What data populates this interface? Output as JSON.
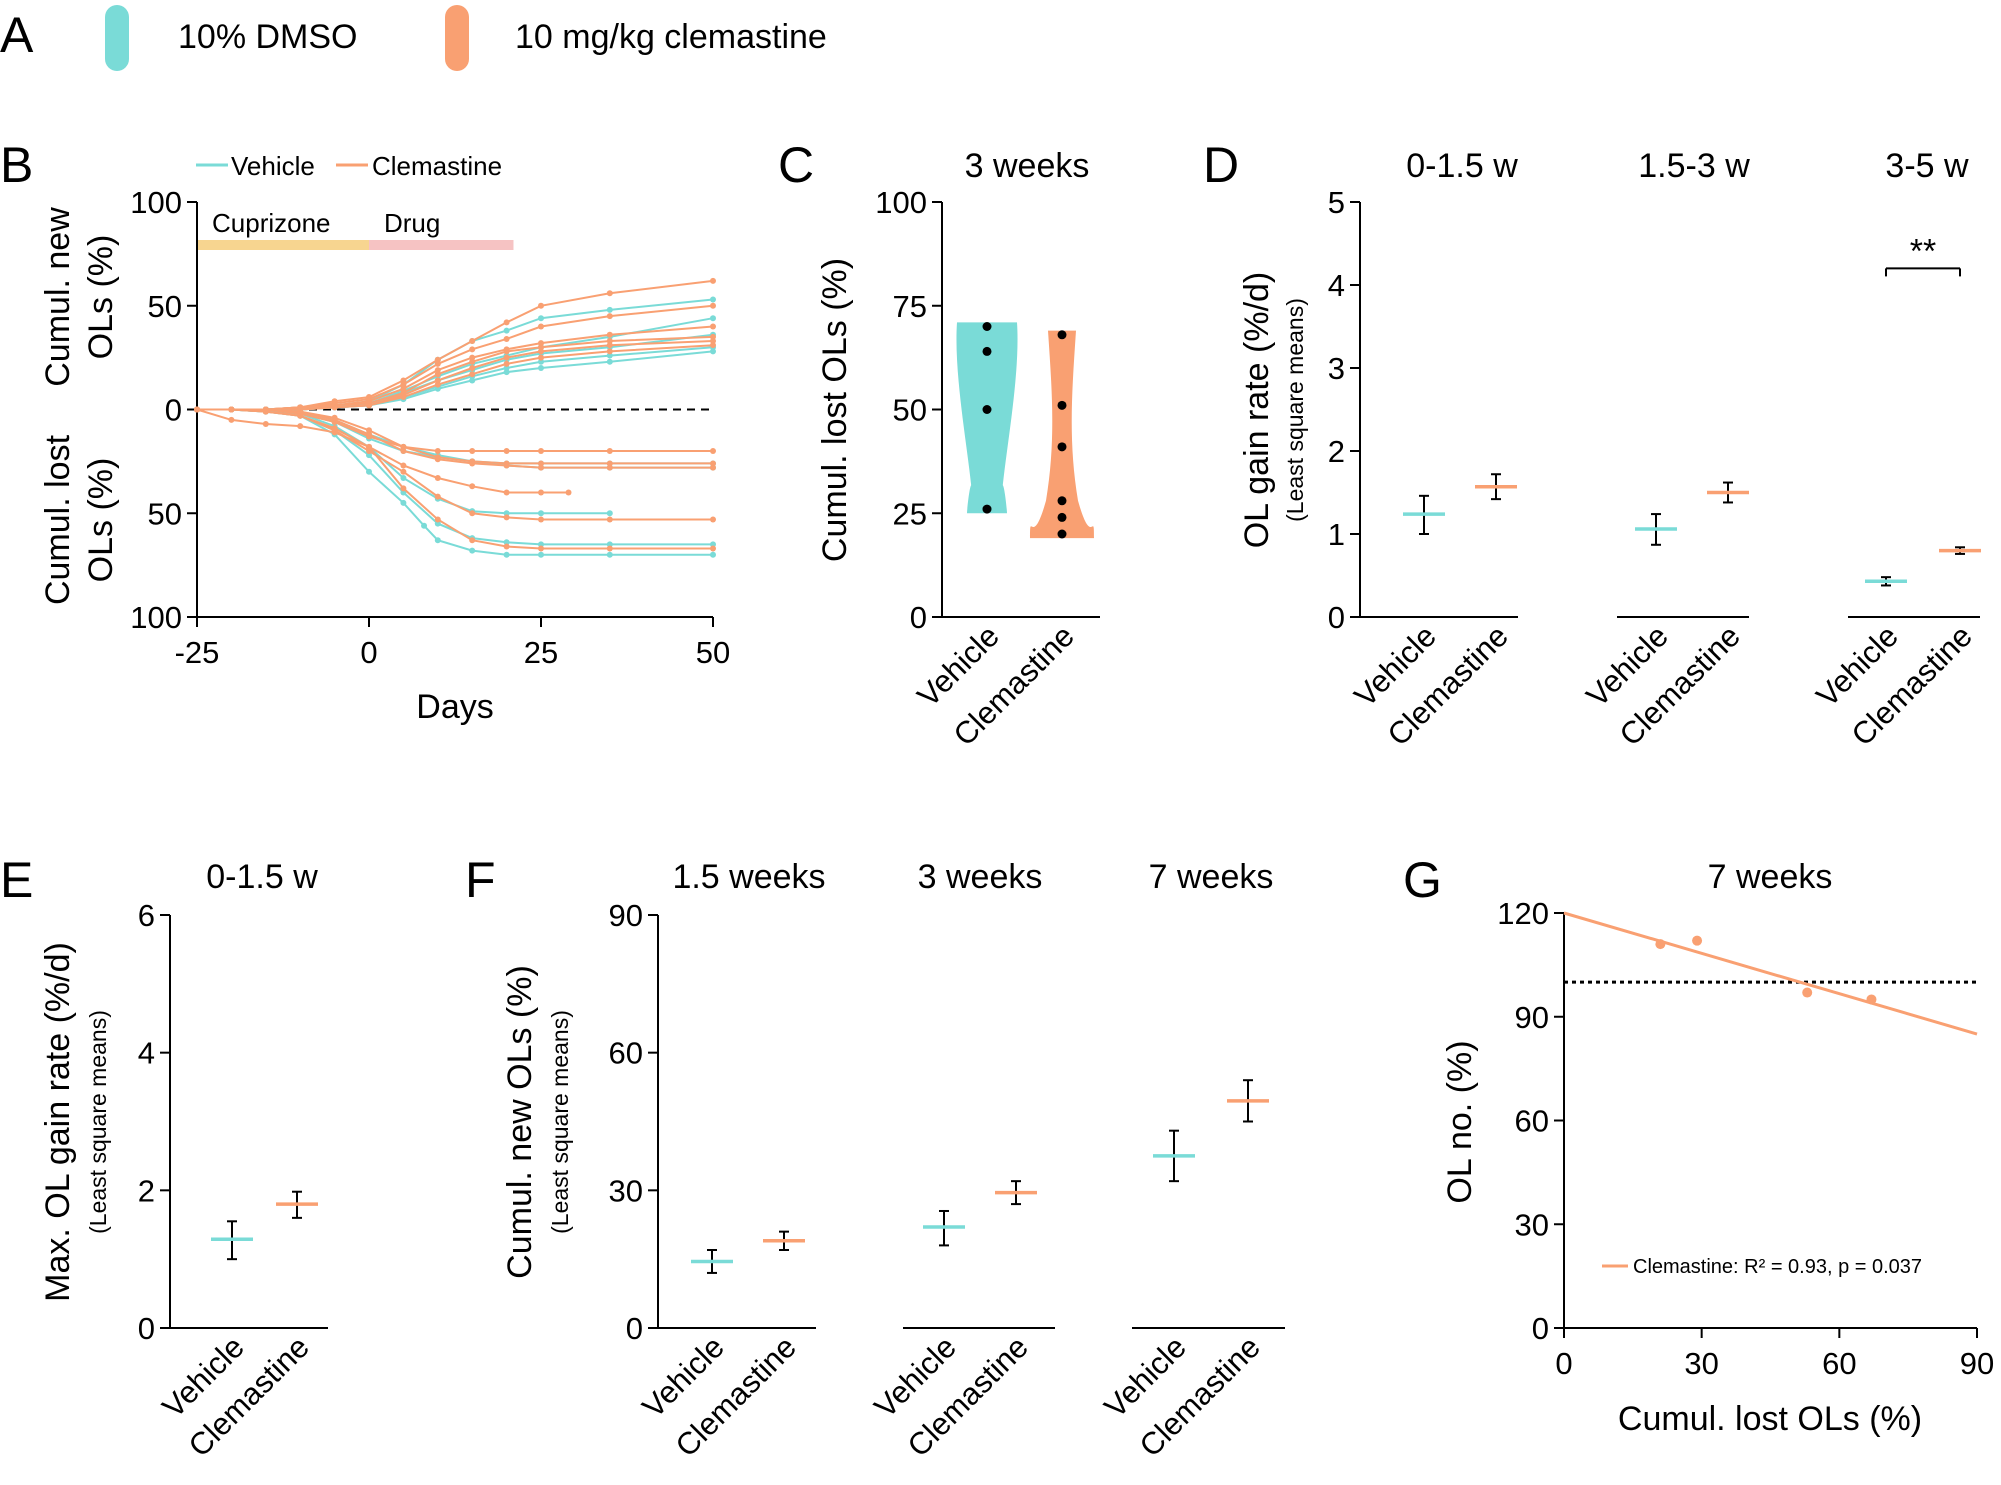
{
  "colors": {
    "vehicle": "#7ADBD7",
    "clemastine": "#F9A072",
    "cuprizone": "#F7D590",
    "drug": "#F6C3C3",
    "black": "#000000"
  },
  "chart_data": [
    {
      "panel": "A",
      "type": "legend",
      "entries": [
        {
          "label": "10% DMSO",
          "color": "#7ADBD7"
        },
        {
          "label": "10 mg/kg clemastine",
          "color": "#F9A072"
        }
      ]
    },
    {
      "panel": "B",
      "type": "line",
      "xlabel": "Days",
      "ylabel_top": [
        "Cumul. new",
        "OLs (%)"
      ],
      "ylabel_bottom": [
        "Cumul. lost",
        "OLs (%)"
      ],
      "xlim": [
        -25,
        50
      ],
      "ylim": [
        -100,
        100
      ],
      "xticks": [
        "-25",
        "0",
        "25",
        "50"
      ],
      "yticks": [
        {
          "v": 100,
          "label": "100"
        },
        {
          "v": 50,
          "label": "50"
        },
        {
          "v": 0,
          "label": "0"
        },
        {
          "v": -50,
          "label": "50"
        },
        {
          "v": -100,
          "label": "100"
        }
      ],
      "phases": [
        {
          "label": "Cuprizone",
          "start": -25,
          "end": 0
        },
        {
          "label": "Drug",
          "start": 0,
          "end": 21
        }
      ],
      "legend": [
        "Vehicle",
        "Clemastine"
      ],
      "series": [
        {
          "group": "vehicle",
          "x": [
            -25,
            -20,
            -15,
            -10,
            -5,
            0,
            5,
            10,
            15,
            20,
            25,
            35,
            50
          ],
          "y": [
            0,
            0,
            0,
            1,
            2,
            4,
            12,
            24,
            33,
            38,
            44,
            48,
            53
          ]
        },
        {
          "group": "vehicle",
          "x": [
            -25,
            -20,
            -15,
            -10,
            -5,
            0,
            5,
            10,
            15,
            20,
            25,
            35,
            50
          ],
          "y": [
            0,
            0,
            0,
            0,
            1,
            3,
            9,
            16,
            22,
            26,
            30,
            35,
            44
          ]
        },
        {
          "group": "vehicle",
          "x": [
            -25,
            -20,
            -15,
            -10,
            -5,
            0,
            5,
            10,
            15,
            20,
            25,
            35,
            50
          ],
          "y": [
            0,
            0,
            0,
            0,
            1,
            2,
            8,
            14,
            19,
            24,
            27,
            30,
            36
          ]
        },
        {
          "group": "vehicle",
          "x": [
            -25,
            -20,
            -15,
            -10,
            -5,
            0,
            5,
            10,
            15,
            20,
            25,
            35,
            50
          ],
          "y": [
            0,
            0,
            0,
            0,
            1,
            2,
            6,
            11,
            16,
            20,
            23,
            26,
            30
          ]
        },
        {
          "group": "vehicle",
          "x": [
            -25,
            -20,
            -15,
            -10,
            -5,
            0,
            5,
            10,
            15,
            20,
            25,
            35,
            50
          ],
          "y": [
            0,
            0,
            0,
            0,
            1,
            2,
            5,
            10,
            14,
            18,
            20,
            23,
            28
          ]
        },
        {
          "group": "clemastine",
          "x": [
            -25,
            -20,
            -15,
            -10,
            -5,
            0,
            5,
            10,
            15,
            20,
            25,
            35,
            50
          ],
          "y": [
            0,
            0,
            0,
            1,
            4,
            6,
            14,
            24,
            33,
            42,
            50,
            56,
            62
          ]
        },
        {
          "group": "clemastine",
          "x": [
            -25,
            -20,
            -15,
            -10,
            -5,
            0,
            5,
            10,
            15,
            20,
            25,
            35,
            50
          ],
          "y": [
            0,
            0,
            0,
            1,
            3,
            5,
            12,
            22,
            29,
            34,
            40,
            45,
            50
          ]
        },
        {
          "group": "clemastine",
          "x": [
            -25,
            -20,
            -15,
            -10,
            -5,
            0,
            5,
            10,
            15,
            20,
            25,
            35,
            50
          ],
          "y": [
            0,
            0,
            0,
            1,
            2,
            4,
            10,
            19,
            25,
            29,
            32,
            36,
            40
          ]
        },
        {
          "group": "clemastine",
          "x": [
            -25,
            -20,
            -15,
            -10,
            -5,
            0,
            5,
            10,
            15,
            20,
            25,
            35,
            50
          ],
          "y": [
            0,
            0,
            0,
            1,
            2,
            3,
            8,
            17,
            23,
            28,
            30,
            33,
            35
          ]
        },
        {
          "group": "clemastine",
          "x": [
            -25,
            -20,
            -15,
            -10,
            -5,
            0,
            5,
            10,
            15,
            20,
            25,
            35,
            50
          ],
          "y": [
            0,
            0,
            0,
            0,
            1,
            2,
            7,
            14,
            20,
            25,
            28,
            31,
            33
          ]
        },
        {
          "group": "clemastine",
          "x": [
            -25,
            -20,
            -15,
            -10,
            -5,
            0,
            5,
            10,
            15,
            20,
            25,
            35,
            50
          ],
          "y": [
            0,
            0,
            0,
            0,
            1,
            2,
            6,
            12,
            17,
            22,
            25,
            28,
            31
          ]
        },
        {
          "group": "vehicle",
          "x": [
            -25,
            -20,
            -15,
            -10,
            -5,
            0,
            5,
            8,
            10,
            15,
            20,
            25,
            35,
            50
          ],
          "y": [
            0,
            0,
            -1,
            -3,
            -12,
            -30,
            -45,
            -56,
            -63,
            -68,
            -70,
            -70,
            -70,
            -70
          ]
        },
        {
          "group": "vehicle",
          "x": [
            -25,
            -20,
            -15,
            -10,
            -5,
            0,
            5,
            10,
            15,
            20,
            25,
            35,
            50
          ],
          "y": [
            0,
            0,
            -1,
            -3,
            -10,
            -22,
            -40,
            -55,
            -62,
            -64,
            -65,
            -65,
            -65
          ]
        },
        {
          "group": "vehicle",
          "x": [
            -25,
            -20,
            -15,
            -10,
            -5,
            0,
            5,
            10,
            15,
            20,
            25,
            35
          ],
          "y": [
            0,
            0,
            -1,
            -2,
            -8,
            -18,
            -33,
            -43,
            -49,
            -50,
            -50,
            -50
          ]
        },
        {
          "group": "vehicle",
          "x": [
            -25,
            -20,
            -15,
            -10,
            -5,
            0,
            5,
            10,
            15,
            20,
            25,
            35,
            50
          ],
          "y": [
            0,
            0,
            0,
            -2,
            -6,
            -14,
            -20,
            -23,
            -25,
            -26,
            -26,
            -26,
            -26
          ]
        },
        {
          "group": "vehicle",
          "x": [
            -25,
            -20,
            -15,
            -10,
            -5,
            0,
            5,
            10,
            15,
            20,
            25,
            35,
            50
          ],
          "y": [
            0,
            0,
            0,
            -1,
            -5,
            -12,
            -18,
            -22,
            -25,
            -27,
            -28,
            -28,
            -28
          ]
        },
        {
          "group": "clemastine",
          "x": [
            -25,
            -20,
            -15,
            -10,
            -5,
            0,
            5,
            10,
            15,
            20,
            25,
            35,
            50
          ],
          "y": [
            0,
            -5,
            -7,
            -8,
            -11,
            -18,
            -38,
            -53,
            -63,
            -66,
            -67,
            -67,
            -67
          ]
        },
        {
          "group": "clemastine",
          "x": [
            -25,
            -20,
            -15,
            -10,
            -5,
            0,
            5,
            10,
            15,
            20,
            25,
            35,
            50
          ],
          "y": [
            0,
            0,
            -1,
            -3,
            -10,
            -20,
            -30,
            -42,
            -50,
            -52,
            -53,
            -53,
            -53
          ]
        },
        {
          "group": "clemastine",
          "x": [
            -25,
            -20,
            -15,
            -10,
            -5,
            0,
            5,
            10,
            15,
            20,
            25,
            29
          ],
          "y": [
            0,
            0,
            -1,
            -3,
            -9,
            -18,
            -27,
            -33,
            -37,
            -40,
            -40,
            -40
          ]
        },
        {
          "group": "clemastine",
          "x": [
            -25,
            -20,
            -15,
            -10,
            -5,
            0,
            5,
            10,
            15,
            20,
            25,
            35,
            50
          ],
          "y": [
            0,
            0,
            0,
            -2,
            -6,
            -13,
            -18,
            -20,
            -20,
            -20,
            -20,
            -20,
            -20
          ]
        },
        {
          "group": "clemastine",
          "x": [
            -25,
            -20,
            -15,
            -10,
            -5,
            0,
            5,
            10,
            15,
            20,
            25,
            35,
            50
          ],
          "y": [
            0,
            0,
            0,
            -1,
            -5,
            -12,
            -20,
            -24,
            -26,
            -27,
            -28,
            -28,
            -28
          ]
        },
        {
          "group": "clemastine",
          "x": [
            -25,
            -20,
            -15,
            -10,
            -5,
            0,
            5,
            10,
            15,
            20,
            25,
            35,
            50
          ],
          "y": [
            0,
            0,
            0,
            -1,
            -4,
            -10,
            -18,
            -23,
            -25,
            -26,
            -26,
            -26,
            -26
          ]
        }
      ]
    },
    {
      "panel": "C",
      "type": "violin",
      "title": "3 weeks",
      "ylabel": "Cumul. lost OLs (%)",
      "ylim": [
        0,
        100
      ],
      "yticks": [
        "0",
        "25",
        "50",
        "75",
        "100"
      ],
      "categories": [
        "Vehicle",
        "Clemastine"
      ],
      "points": [
        [
          26,
          50,
          64,
          70
        ],
        [
          20,
          24,
          28,
          41,
          51,
          68
        ]
      ],
      "ranges": [
        [
          25,
          71
        ],
        [
          19,
          69
        ]
      ]
    },
    {
      "panel": "D",
      "type": "mean_ci",
      "ylabel": "OL gain rate (%/d)",
      "ylabel_sub": "(Least square means)",
      "ylim": [
        0,
        5
      ],
      "yticks": [
        "0",
        "1",
        "2",
        "3",
        "4",
        "5"
      ],
      "groups": [
        {
          "title": "0-1.5 w",
          "categories": [
            "Vehicle",
            "Clemastine"
          ],
          "means": [
            1.24,
            1.57
          ],
          "lower": [
            1.0,
            1.42
          ],
          "upper": [
            1.46,
            1.72
          ]
        },
        {
          "title": "1.5-3 w",
          "categories": [
            "Vehicle",
            "Clemastine"
          ],
          "means": [
            1.06,
            1.5
          ],
          "lower": [
            0.87,
            1.38
          ],
          "upper": [
            1.24,
            1.62
          ]
        },
        {
          "title": "3-5 w",
          "categories": [
            "Vehicle",
            "Clemastine"
          ],
          "means": [
            0.43,
            0.8
          ],
          "lower": [
            0.38,
            0.76
          ],
          "upper": [
            0.48,
            0.84
          ],
          "significance": "**"
        }
      ]
    },
    {
      "panel": "E",
      "type": "mean_ci",
      "ylabel": "Max. OL gain rate (%/d)",
      "ylabel_sub": "(Least square means)",
      "ylim": [
        0,
        6
      ],
      "yticks": [
        "0",
        "2",
        "4",
        "6"
      ],
      "groups": [
        {
          "title": "0-1.5 w",
          "categories": [
            "Vehicle",
            "Clemastine"
          ],
          "means": [
            1.29,
            1.8
          ],
          "lower": [
            1.0,
            1.6
          ],
          "upper": [
            1.55,
            1.98
          ]
        }
      ]
    },
    {
      "panel": "F",
      "type": "mean_ci",
      "ylabel": "Cumul. new OLs (%)",
      "ylabel_sub": "(Least square means)",
      "ylim": [
        0,
        90
      ],
      "yticks": [
        "0",
        "30",
        "60",
        "90"
      ],
      "groups": [
        {
          "title": "1.5 weeks",
          "categories": [
            "Vehicle",
            "Clemastine"
          ],
          "means": [
            14.5,
            19
          ],
          "lower": [
            12,
            17
          ],
          "upper": [
            17,
            21
          ]
        },
        {
          "title": "3 weeks",
          "categories": [
            "Vehicle",
            "Clemastine"
          ],
          "means": [
            22,
            29.5
          ],
          "lower": [
            18,
            27
          ],
          "upper": [
            25.5,
            32
          ]
        },
        {
          "title": "7 weeks",
          "categories": [
            "Vehicle",
            "Clemastine"
          ],
          "means": [
            37.5,
            49.5
          ],
          "lower": [
            32,
            45
          ],
          "upper": [
            43,
            54
          ]
        }
      ]
    },
    {
      "panel": "G",
      "type": "scatter",
      "title": "7 weeks",
      "xlabel": "Cumul. lost OLs (%)",
      "ylabel": "OL no. (%)",
      "xlim": [
        0,
        90
      ],
      "ylim": [
        0,
        120
      ],
      "xticks": [
        "0",
        "30",
        "60",
        "90"
      ],
      "yticks": [
        "0",
        "30",
        "60",
        "90",
        "120"
      ],
      "points": [
        {
          "x": 21,
          "y": 111
        },
        {
          "x": 29,
          "y": 112
        },
        {
          "x": 53,
          "y": 97
        },
        {
          "x": 67,
          "y": 95
        }
      ],
      "fit": {
        "x": [
          0,
          90
        ],
        "y": [
          120,
          85
        ]
      },
      "reference_line": 100,
      "legend": "Clemastine: R² = 0.93, p = 0.037"
    }
  ]
}
